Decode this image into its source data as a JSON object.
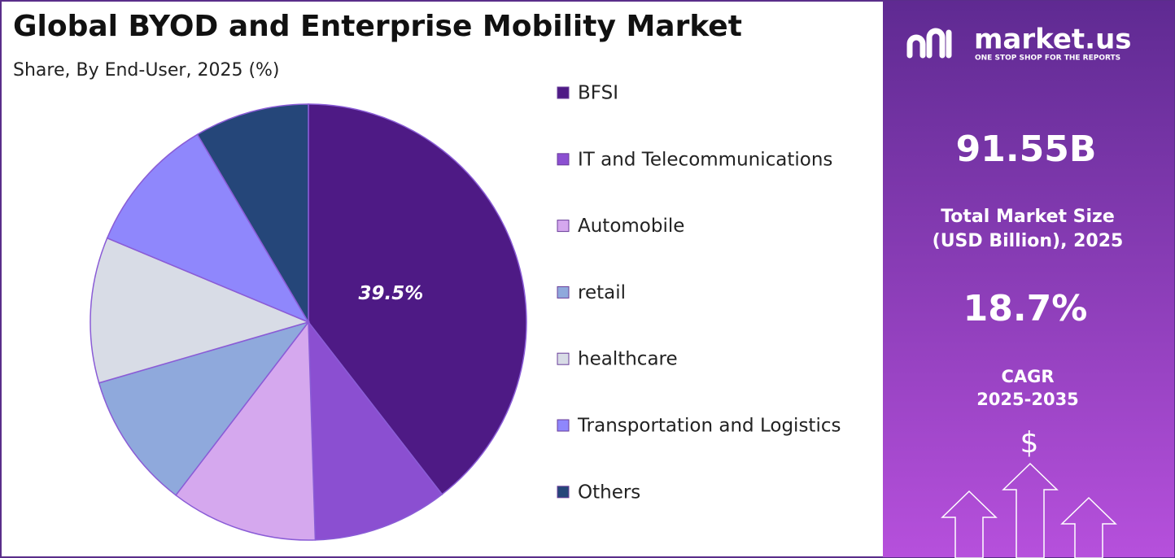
{
  "chart_data": {
    "type": "pie",
    "title": "Global BYOD and Enterprise Mobility Market",
    "subtitle": "Share, By End-User, 2025 (%)",
    "categories": [
      "BFSI",
      "IT and Telecommunications",
      "Automobile",
      "retail",
      "healthcare",
      "Transportation and Logistics",
      "Others"
    ],
    "values": [
      39.5,
      10.0,
      10.9,
      10.1,
      10.8,
      10.2,
      8.5
    ],
    "value_labels": [
      "39.5%",
      null,
      null,
      null,
      null,
      null,
      null
    ],
    "colors": [
      "#4e1a85",
      "#8b4fd1",
      "#d5a8ee",
      "#8fa9dc",
      "#d8dce6",
      "#8f87fc",
      "#254679"
    ]
  },
  "side_panel": {
    "brand": "market.us",
    "tagline": "ONE STOP SHOP FOR THE REPORTS",
    "market_size": "91.55B",
    "market_size_label_1": "Total Market Size",
    "market_size_label_2": "(USD Billion), 2025",
    "cagr": "18.7%",
    "cagr_label_1": "CAGR",
    "cagr_label_2": "2025-2035",
    "currency_symbol": "$"
  }
}
